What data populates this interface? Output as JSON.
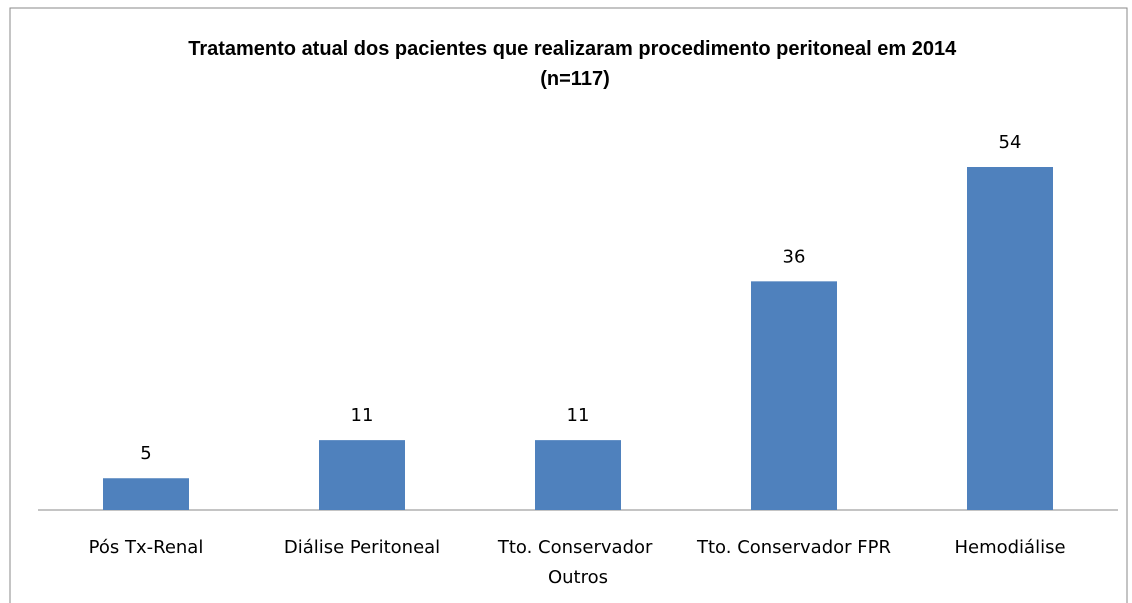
{
  "chart_data": {
    "type": "bar",
    "title": "Tratamento atual dos pacientes que realizaram procedimento peritoneal em 2014 (n=117)",
    "categories": [
      "Pós Tx-Renal",
      "Diálise Peritoneal",
      "Tto. Conservador Outros",
      "Tto. Conservador FPR",
      "Hemodiálise"
    ],
    "values": [
      5,
      11,
      11,
      36,
      54
    ],
    "color": "#4f81bd"
  }
}
